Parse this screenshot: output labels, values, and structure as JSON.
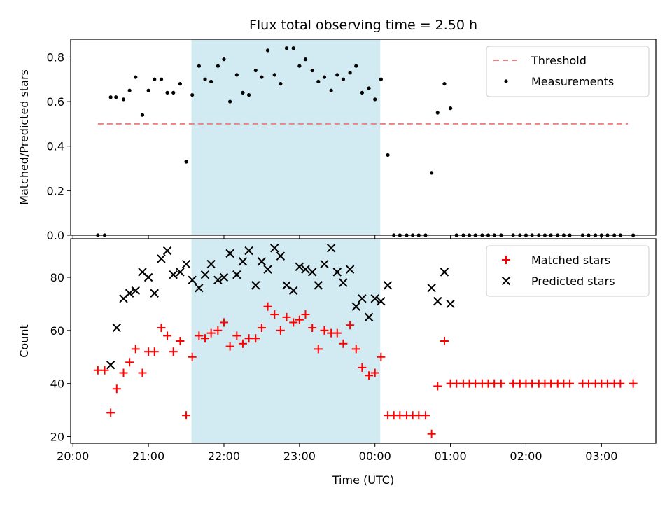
{
  "chart_data": {
    "title": "Flux total observing time = 2.50 h",
    "xlabel": "Time (UTC)",
    "x_unit": "hours since 20:00 UTC",
    "x_ticks": [
      {
        "value": 0,
        "label": "20:00"
      },
      {
        "value": 1,
        "label": "21:00"
      },
      {
        "value": 2,
        "label": "22:00"
      },
      {
        "value": 3,
        "label": "23:00"
      },
      {
        "value": 4,
        "label": "00:00"
      },
      {
        "value": 5,
        "label": "01:00"
      },
      {
        "value": 6,
        "label": "02:00"
      },
      {
        "value": 7,
        "label": "03:00"
      }
    ],
    "xlim": [
      -0.03,
      7.72
    ],
    "shaded_interval": {
      "start": 1.57,
      "end": 4.07,
      "color": "#add8e6"
    },
    "panels": [
      {
        "type": "scatter",
        "ylabel": "Matched/Predicted stars",
        "ylim": [
          0,
          0.88
        ],
        "y_ticks": [
          {
            "value": 0.0,
            "label": "0.0"
          },
          {
            "value": 0.2,
            "label": "0.2"
          },
          {
            "value": 0.4,
            "label": "0.4"
          },
          {
            "value": 0.6,
            "label": "0.6"
          },
          {
            "value": 0.8,
            "label": "0.8"
          }
        ],
        "legend": {
          "position": "top-right",
          "entries": [
            {
              "label": "Threshold",
              "kind": "dashed-line",
              "color": "#f08080"
            },
            {
              "label": "Measurements",
              "kind": "dot",
              "color": "#000000"
            }
          ]
        },
        "threshold": {
          "label": "Threshold",
          "y": 0.5,
          "x_start": 0.33,
          "x_end": 7.35,
          "color": "#f08080"
        },
        "series": [
          {
            "name": "Measurements",
            "color": "#000000",
            "points": [
              [
                0.33,
                0.0
              ],
              [
                0.42,
                0.0
              ],
              [
                0.5,
                0.62
              ],
              [
                0.57,
                0.62
              ],
              [
                0.67,
                0.61
              ],
              [
                0.75,
                0.65
              ],
              [
                0.83,
                0.71
              ],
              [
                0.92,
                0.54
              ],
              [
                1.0,
                0.65
              ],
              [
                1.08,
                0.7
              ],
              [
                1.17,
                0.7
              ],
              [
                1.25,
                0.64
              ],
              [
                1.33,
                0.64
              ],
              [
                1.42,
                0.68
              ],
              [
                1.5,
                0.33
              ],
              [
                1.58,
                0.63
              ],
              [
                1.67,
                0.76
              ],
              [
                1.75,
                0.7
              ],
              [
                1.83,
                0.69
              ],
              [
                1.92,
                0.76
              ],
              [
                2.0,
                0.79
              ],
              [
                2.08,
                0.6
              ],
              [
                2.17,
                0.72
              ],
              [
                2.25,
                0.64
              ],
              [
                2.33,
                0.63
              ],
              [
                2.42,
                0.74
              ],
              [
                2.5,
                0.71
              ],
              [
                2.58,
                0.83
              ],
              [
                2.67,
                0.72
              ],
              [
                2.75,
                0.68
              ],
              [
                2.83,
                0.84
              ],
              [
                2.92,
                0.84
              ],
              [
                3.0,
                0.76
              ],
              [
                3.08,
                0.79
              ],
              [
                3.17,
                0.74
              ],
              [
                3.25,
                0.69
              ],
              [
                3.33,
                0.71
              ],
              [
                3.42,
                0.65
              ],
              [
                3.5,
                0.72
              ],
              [
                3.58,
                0.7
              ],
              [
                3.67,
                0.73
              ],
              [
                3.75,
                0.76
              ],
              [
                3.83,
                0.64
              ],
              [
                3.92,
                0.66
              ],
              [
                4.0,
                0.61
              ],
              [
                4.08,
                0.7
              ],
              [
                4.17,
                0.36
              ],
              [
                4.25,
                0.0
              ],
              [
                4.33,
                0.0
              ],
              [
                4.42,
                0.0
              ],
              [
                4.5,
                0.0
              ],
              [
                4.58,
                0.0
              ],
              [
                4.67,
                0.0
              ],
              [
                4.75,
                0.28
              ],
              [
                4.83,
                0.55
              ],
              [
                4.92,
                0.68
              ],
              [
                5.0,
                0.57
              ],
              [
                5.08,
                0.0
              ],
              [
                5.17,
                0.0
              ],
              [
                5.25,
                0.0
              ],
              [
                5.33,
                0.0
              ],
              [
                5.42,
                0.0
              ],
              [
                5.5,
                0.0
              ],
              [
                5.58,
                0.0
              ],
              [
                5.67,
                0.0
              ],
              [
                5.83,
                0.0
              ],
              [
                5.92,
                0.0
              ],
              [
                6.0,
                0.0
              ],
              [
                6.08,
                0.0
              ],
              [
                6.17,
                0.0
              ],
              [
                6.25,
                0.0
              ],
              [
                6.33,
                0.0
              ],
              [
                6.42,
                0.0
              ],
              [
                6.5,
                0.0
              ],
              [
                6.58,
                0.0
              ],
              [
                6.75,
                0.0
              ],
              [
                6.83,
                0.0
              ],
              [
                6.92,
                0.0
              ],
              [
                7.0,
                0.0
              ],
              [
                7.08,
                0.0
              ],
              [
                7.17,
                0.0
              ],
              [
                7.25,
                0.0
              ],
              [
                7.42,
                0.0
              ]
            ]
          }
        ]
      },
      {
        "type": "scatter",
        "ylabel": "Count",
        "ylim": [
          17.5,
          94.5
        ],
        "y_ticks": [
          {
            "value": 20,
            "label": "20"
          },
          {
            "value": 40,
            "label": "40"
          },
          {
            "value": 60,
            "label": "60"
          },
          {
            "value": 80,
            "label": "80"
          }
        ],
        "legend": {
          "position": "top-right",
          "entries": [
            {
              "label": "Matched stars",
              "kind": "plus",
              "color": "#ff0000"
            },
            {
              "label": "Predicted stars",
              "kind": "cross",
              "color": "#000000"
            }
          ]
        },
        "series": [
          {
            "name": "Matched stars",
            "marker": "plus",
            "color": "#ff0000",
            "points": [
              [
                0.33,
                45
              ],
              [
                0.42,
                45
              ],
              [
                0.5,
                29
              ],
              [
                0.58,
                38
              ],
              [
                0.67,
                44
              ],
              [
                0.75,
                48
              ],
              [
                0.83,
                53
              ],
              [
                0.92,
                44
              ],
              [
                1.0,
                52
              ],
              [
                1.08,
                52
              ],
              [
                1.17,
                61
              ],
              [
                1.25,
                58
              ],
              [
                1.33,
                52
              ],
              [
                1.42,
                56
              ],
              [
                1.5,
                28
              ],
              [
                1.58,
                50
              ],
              [
                1.67,
                58
              ],
              [
                1.75,
                57
              ],
              [
                1.83,
                59
              ],
              [
                1.92,
                60
              ],
              [
                2.0,
                63
              ],
              [
                2.08,
                54
              ],
              [
                2.17,
                58
              ],
              [
                2.25,
                55
              ],
              [
                2.33,
                57
              ],
              [
                2.42,
                57
              ],
              [
                2.5,
                61
              ],
              [
                2.58,
                69
              ],
              [
                2.67,
                66
              ],
              [
                2.75,
                60
              ],
              [
                2.83,
                65
              ],
              [
                2.92,
                63
              ],
              [
                3.0,
                64
              ],
              [
                3.08,
                66
              ],
              [
                3.17,
                61
              ],
              [
                3.25,
                53
              ],
              [
                3.33,
                60
              ],
              [
                3.42,
                59
              ],
              [
                3.5,
                59
              ],
              [
                3.58,
                55
              ],
              [
                3.67,
                62
              ],
              [
                3.75,
                53
              ],
              [
                3.83,
                46
              ],
              [
                3.92,
                43
              ],
              [
                4.0,
                44
              ],
              [
                4.08,
                50
              ],
              [
                4.17,
                28
              ],
              [
                4.25,
                28
              ],
              [
                4.33,
                28
              ],
              [
                4.42,
                28
              ],
              [
                4.5,
                28
              ],
              [
                4.58,
                28
              ],
              [
                4.67,
                28
              ],
              [
                4.75,
                21
              ],
              [
                4.83,
                39
              ],
              [
                4.92,
                56
              ],
              [
                5.0,
                40
              ],
              [
                5.08,
                40
              ],
              [
                5.17,
                40
              ],
              [
                5.25,
                40
              ],
              [
                5.33,
                40
              ],
              [
                5.42,
                40
              ],
              [
                5.5,
                40
              ],
              [
                5.58,
                40
              ],
              [
                5.67,
                40
              ],
              [
                5.83,
                40
              ],
              [
                5.92,
                40
              ],
              [
                6.0,
                40
              ],
              [
                6.08,
                40
              ],
              [
                6.17,
                40
              ],
              [
                6.25,
                40
              ],
              [
                6.33,
                40
              ],
              [
                6.42,
                40
              ],
              [
                6.5,
                40
              ],
              [
                6.58,
                40
              ],
              [
                6.75,
                40
              ],
              [
                6.83,
                40
              ],
              [
                6.92,
                40
              ],
              [
                7.0,
                40
              ],
              [
                7.08,
                40
              ],
              [
                7.17,
                40
              ],
              [
                7.25,
                40
              ],
              [
                7.42,
                40
              ]
            ]
          },
          {
            "name": "Predicted stars",
            "marker": "cross",
            "color": "#000000",
            "points": [
              [
                0.5,
                47
              ],
              [
                0.58,
                61
              ],
              [
                0.67,
                72
              ],
              [
                0.75,
                74
              ],
              [
                0.83,
                75
              ],
              [
                0.92,
                82
              ],
              [
                1.0,
                80
              ],
              [
                1.08,
                74
              ],
              [
                1.17,
                87
              ],
              [
                1.25,
                90
              ],
              [
                1.33,
                81
              ],
              [
                1.42,
                82
              ],
              [
                1.5,
                85
              ],
              [
                1.58,
                79
              ],
              [
                1.67,
                76
              ],
              [
                1.75,
                81
              ],
              [
                1.83,
                85
              ],
              [
                1.92,
                79
              ],
              [
                2.0,
                80
              ],
              [
                2.08,
                89
              ],
              [
                2.17,
                81
              ],
              [
                2.25,
                86
              ],
              [
                2.33,
                90
              ],
              [
                2.42,
                77
              ],
              [
                2.5,
                86
              ],
              [
                2.58,
                83
              ],
              [
                2.67,
                91
              ],
              [
                2.75,
                88
              ],
              [
                2.83,
                77
              ],
              [
                2.92,
                75
              ],
              [
                3.0,
                84
              ],
              [
                3.08,
                83
              ],
              [
                3.17,
                82
              ],
              [
                3.25,
                77
              ],
              [
                3.33,
                85
              ],
              [
                3.42,
                91
              ],
              [
                3.5,
                82
              ],
              [
                3.58,
                78
              ],
              [
                3.67,
                83
              ],
              [
                3.75,
                69
              ],
              [
                3.83,
                72
              ],
              [
                3.92,
                65
              ],
              [
                4.0,
                72
              ],
              [
                4.08,
                71
              ],
              [
                4.17,
                77
              ],
              [
                4.75,
                76
              ],
              [
                4.83,
                71
              ],
              [
                4.92,
                82
              ],
              [
                5.0,
                70
              ]
            ]
          }
        ]
      }
    ]
  }
}
